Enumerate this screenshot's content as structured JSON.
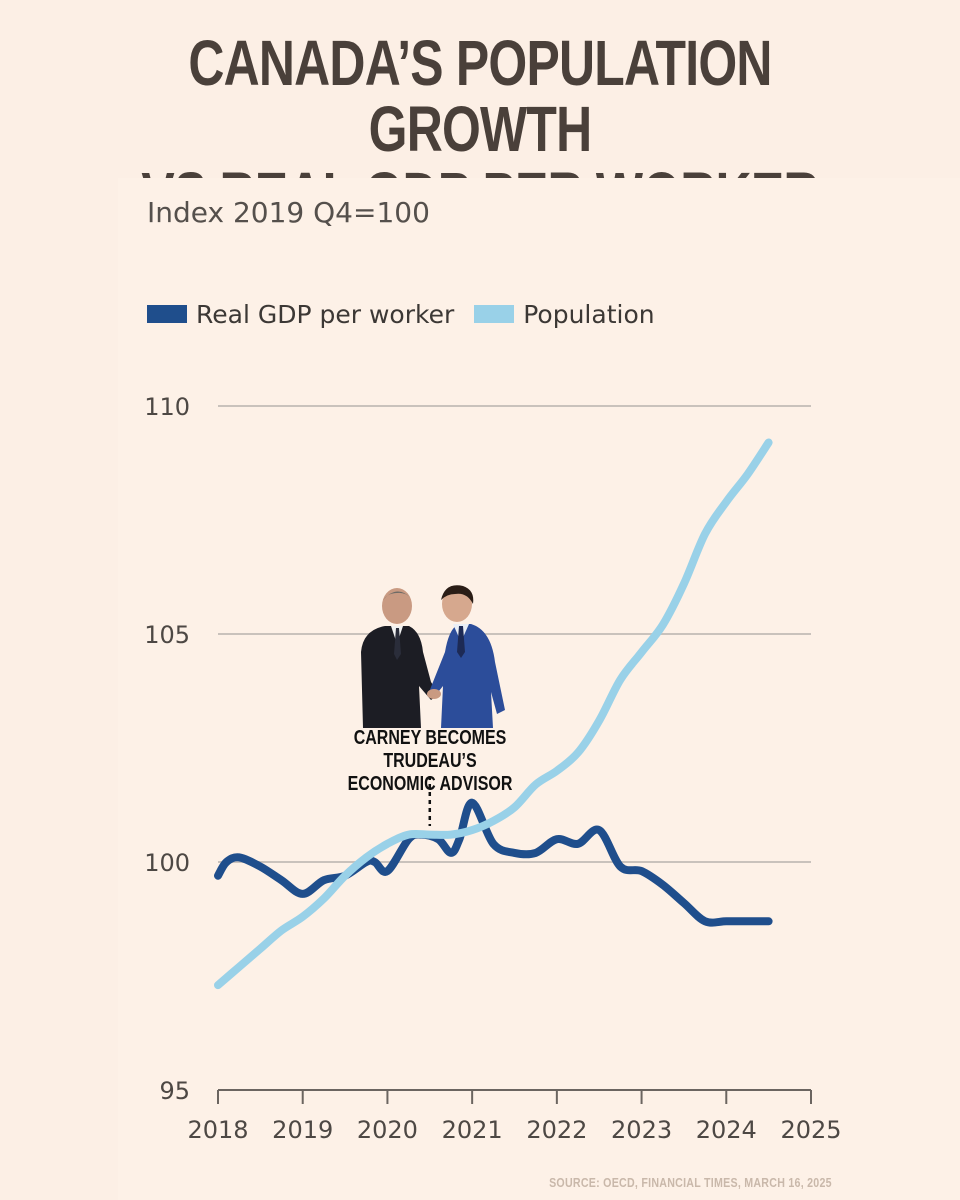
{
  "title": {
    "line1": "Canada’s Population Growth",
    "line2": "vs Real GDP per Worker"
  },
  "subtitle": "Index 2019 Q4=100",
  "annotation": {
    "line1": "Carney becomes Trudeau’s",
    "line2": "economic advisor",
    "x": 2020.5
  },
  "source": "Source: OECD, Financial Times, March 16, 2025",
  "colors": {
    "gdp": "#1f4e8c",
    "population": "#99d1e8",
    "grid": "#c9c2bc",
    "background": "#fcefe5"
  },
  "chart_data": {
    "type": "line",
    "xlim": [
      2018,
      2025
    ],
    "ylim": [
      95,
      110
    ],
    "x_ticks": [
      "2018",
      "2019",
      "2020",
      "2021",
      "2022",
      "2023",
      "2024",
      "2025"
    ],
    "y_ticks": [
      "95",
      "100",
      "105",
      "110"
    ],
    "grid": true,
    "legend": "top-left",
    "series": [
      {
        "name": "Real GDP per worker",
        "color": "#1f4e8c",
        "x": [
          2018.0,
          2018.1,
          2018.25,
          2018.5,
          2018.75,
          2019.0,
          2019.25,
          2019.5,
          2019.75,
          2019.85,
          2020.0,
          2020.25,
          2020.4,
          2020.6,
          2020.75,
          2020.85,
          2021.0,
          2021.25,
          2021.5,
          2021.75,
          2022.0,
          2022.25,
          2022.5,
          2022.75,
          2023.0,
          2023.25,
          2023.5,
          2023.75,
          2024.0,
          2024.25,
          2024.5
        ],
        "y": [
          99.7,
          100.0,
          100.1,
          99.9,
          99.6,
          99.3,
          99.6,
          99.7,
          100.0,
          100.0,
          99.8,
          100.5,
          100.6,
          100.5,
          100.2,
          100.5,
          101.3,
          100.4,
          100.2,
          100.2,
          100.5,
          100.4,
          100.7,
          99.9,
          99.8,
          99.5,
          99.1,
          98.7,
          98.7,
          98.7,
          98.7
        ]
      },
      {
        "name": "Population",
        "color": "#99d1e8",
        "x": [
          2018.0,
          2018.25,
          2018.5,
          2018.75,
          2019.0,
          2019.25,
          2019.5,
          2019.75,
          2020.0,
          2020.25,
          2020.5,
          2020.75,
          2021.0,
          2021.25,
          2021.5,
          2021.75,
          2022.0,
          2022.25,
          2022.5,
          2022.75,
          2023.0,
          2023.25,
          2023.5,
          2023.75,
          2024.0,
          2024.25,
          2024.5
        ],
        "y": [
          97.3,
          97.7,
          98.1,
          98.5,
          98.8,
          99.2,
          99.7,
          100.1,
          100.4,
          100.6,
          100.6,
          100.6,
          100.7,
          100.9,
          101.2,
          101.7,
          102.0,
          102.4,
          103.1,
          104.0,
          104.6,
          105.2,
          106.1,
          107.2,
          107.9,
          108.5,
          109.2
        ]
      }
    ]
  }
}
